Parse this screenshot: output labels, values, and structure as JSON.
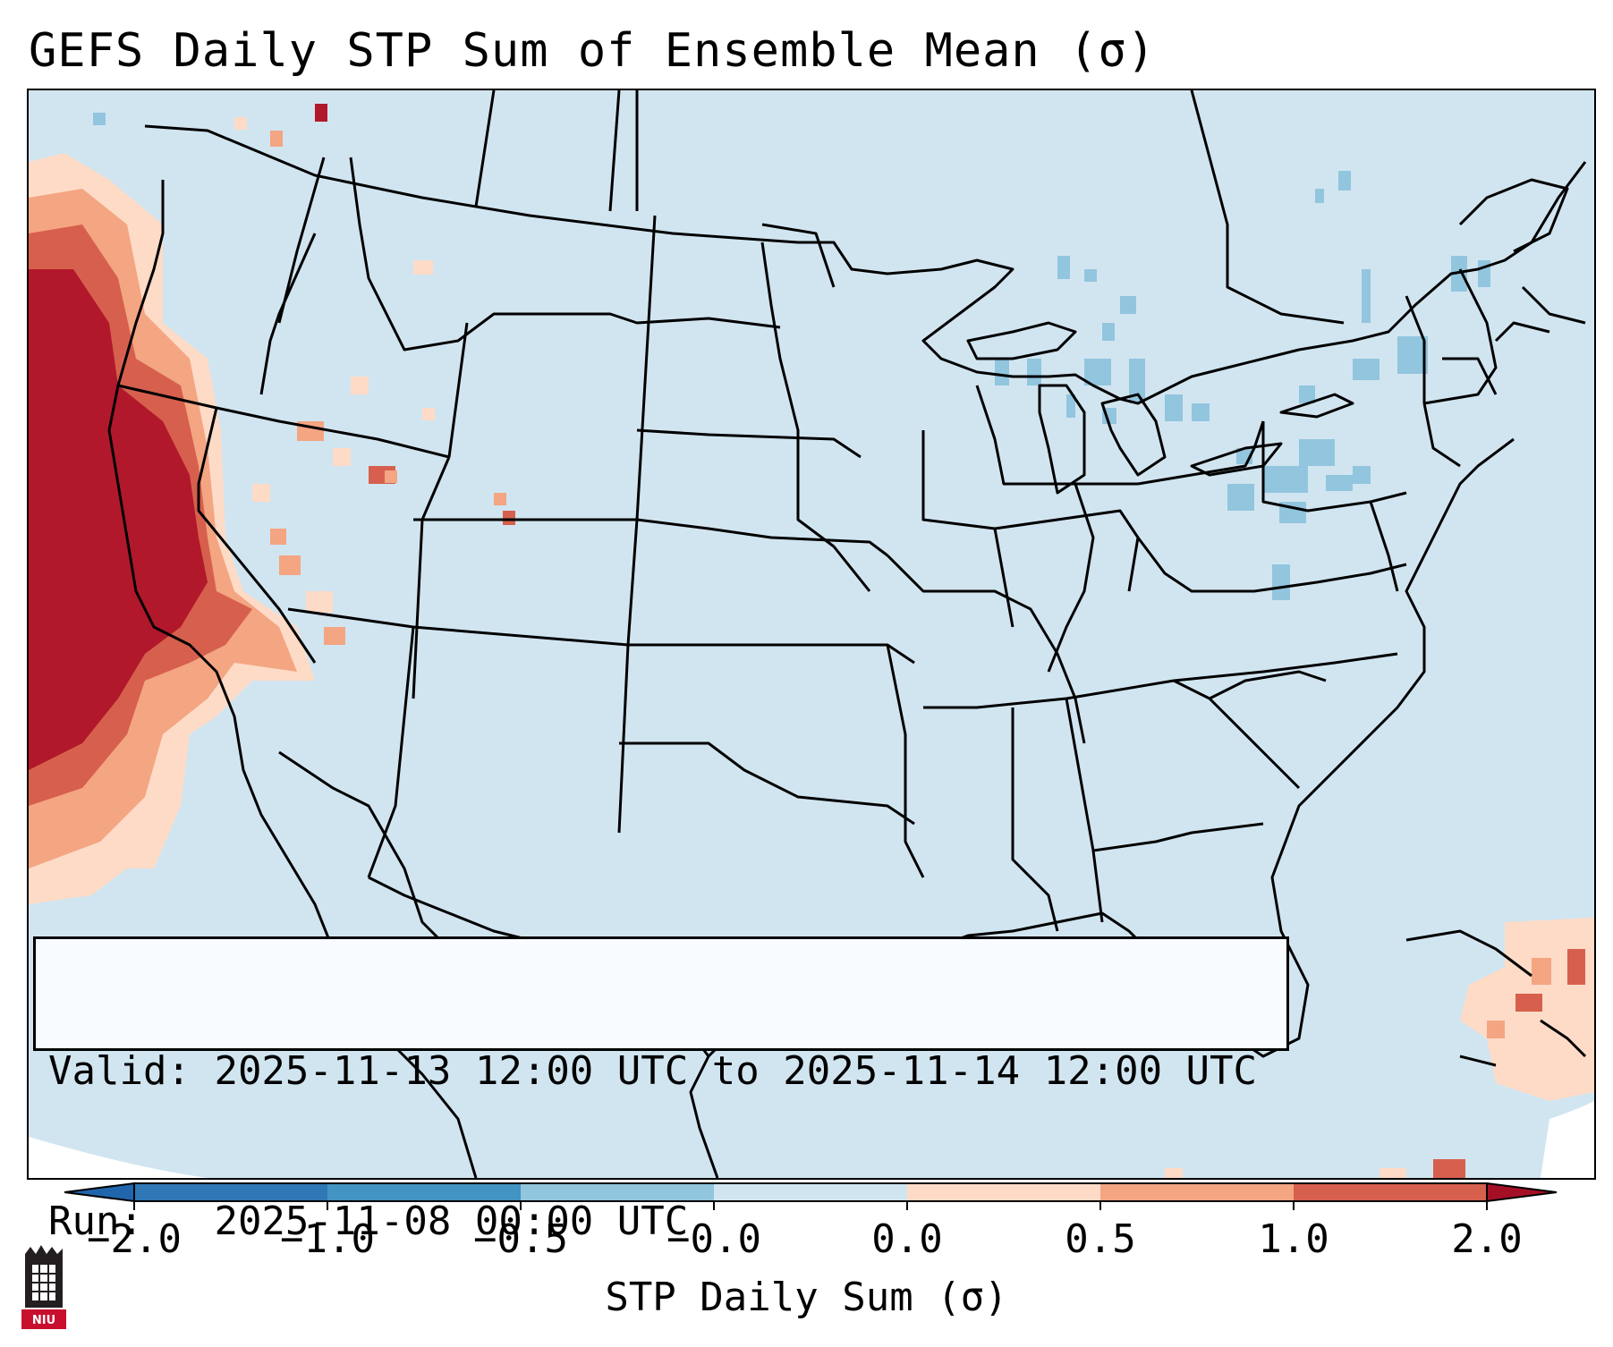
{
  "title": "GEFS Daily STP Sum of Ensemble Mean (σ)",
  "info": {
    "valid_label": "Valid:",
    "valid_value": "2025-11-13 12:00 UTC to 2025-11-14 12:00 UTC",
    "run_label": "Run:",
    "run_value": "2025-11-08 00:00 UTC"
  },
  "colorbar": {
    "label": "STP Daily Sum (σ)",
    "ticks": [
      "−2.0",
      "−1.0",
      "−0.5",
      "−0.0",
      "0.0",
      "0.5",
      "1.0",
      "2.0"
    ],
    "colors": [
      "#2f78b5",
      "#4393c3",
      "#92c5de",
      "#d1e5f0",
      "#fddbc7",
      "#f4a582",
      "#d6604d",
      "#b2182b"
    ],
    "under_color": "#2166ac",
    "over_color": "#a50f26"
  },
  "map": {
    "background_color": "#d1e5f0",
    "field_description_colors": {
      "strong_positive": "#b2182b",
      "moderate_positive": "#d6604d",
      "weak_positive": "#f4a582",
      "slight_positive": "#fddbc7",
      "slight_negative": "#92c5de"
    }
  },
  "logo": {
    "text": "NIU",
    "icon": "niu-logo-icon"
  }
}
